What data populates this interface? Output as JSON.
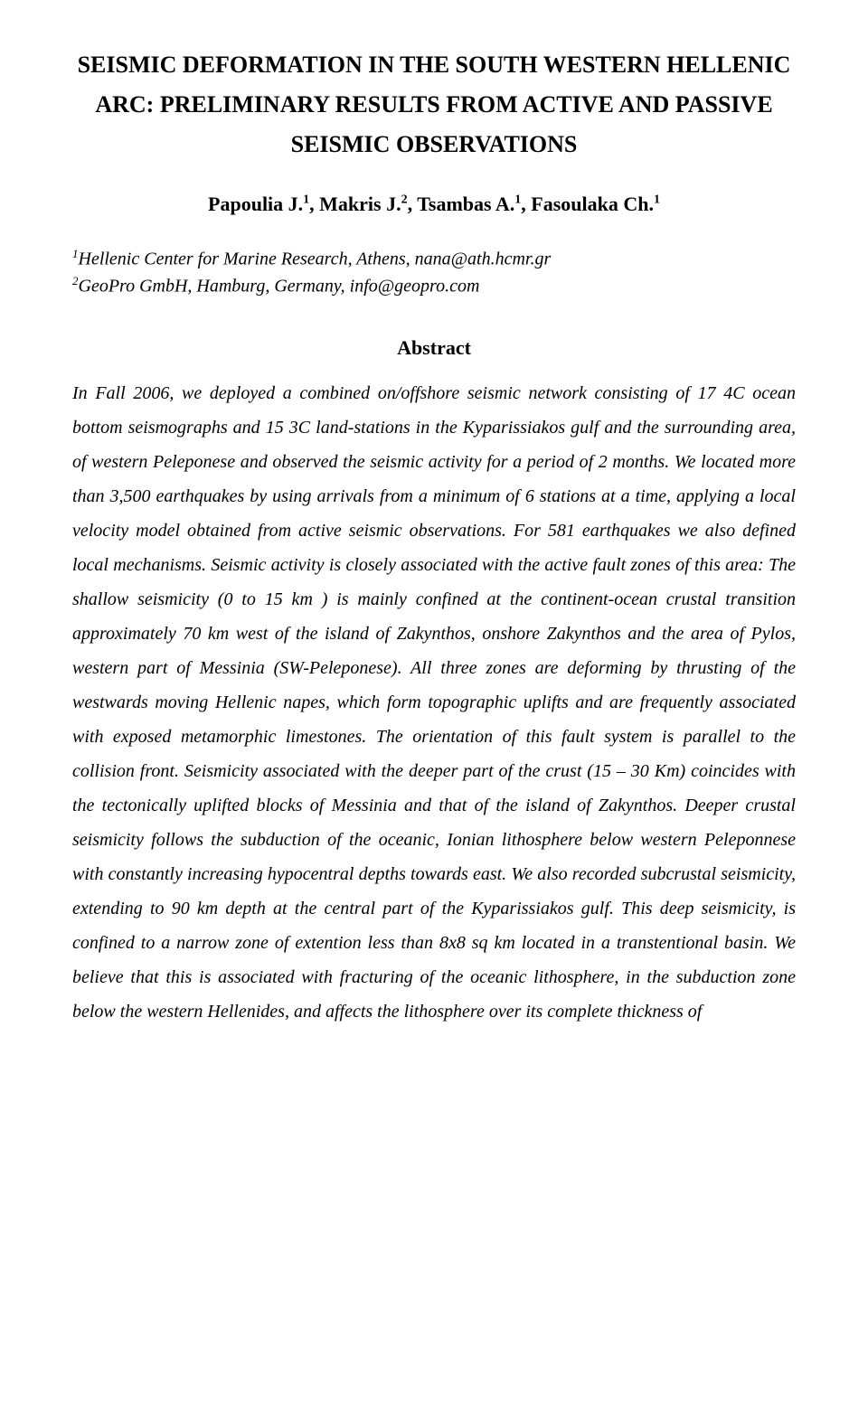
{
  "title": "SEISMIC DEFORMATION IN THE SOUTH WESTERN HELLENIC ARC: PRELIMINARY RESULTS FROM ACTIVE AND PASSIVE SEISMIC OBSERVATIONS",
  "authors": {
    "a1_name": "Papoulia J.",
    "a1_sup": "1",
    "a2_name": ", Makris J.",
    "a2_sup": "2",
    "a3_name": ", Tsambas A.",
    "a3_sup": "1",
    "a4_name": ", Fasoulaka Ch.",
    "a4_sup": "1"
  },
  "affil": {
    "line1_sup": "1",
    "line1_text": "Hellenic Center for Marine Research, Athens, nana@ath.hcmr.gr",
    "line2_sup": "2",
    "line2_text": "GeoPro GmbH, Hamburg, Germany, info@geopro.com"
  },
  "abstract_title": "Abstract",
  "abstract_body": "In Fall 2006, we deployed a combined on/offshore seismic network consisting of 17 4C ocean bottom seismographs and 15 3C land-stations in the Kyparissiakos gulf and the surrounding area, of western Peleponese and observed the seismic activity for a period of 2 months. We located more than 3,500 earthquakes by using arrivals from a minimum of 6 stations at a time, applying a local velocity model obtained from active seismic observations. For 581 earthquakes we also defined local mechanisms. Seismic activity is closely  associated with the  active fault zones of this  area: The shallow seismicity (0 to 15 km ) is mainly confined at the continent-ocean crustal transition approximately 70 km west of the island of Zakynthos, onshore Zakynthos and the area of Pylos, western part of Messinia (SW-Peleponese). All three zones are deforming by thrusting of the westwards moving Hellenic napes, which form topographic uplifts and are frequently associated with exposed metamorphic limestones. The orientation of this fault system is parallel to the collision front. Seismicity associated with the deeper part of the crust (15 – 30 Km) coincides with the tectonically uplifted blocks of Messinia and that of the island of Zakynthos. Deeper crustal seismicity follows the subduction of the oceanic, Ionian lithosphere below western Peleponnese with constantly increasing hypocentral  depths towards east. We also recorded subcrustal seismicity, extending to 90 km depth at the central part of the Kyparissiakos gulf. This deep seismicity, is confined to a narrow zone of extention less than 8x8 sq km located in a transtentional basin. We believe that this  is associated with fracturing of the oceanic lithosphere, in the subduction zone below the western Hellenides, and affects the lithosphere over its complete thickness of"
}
